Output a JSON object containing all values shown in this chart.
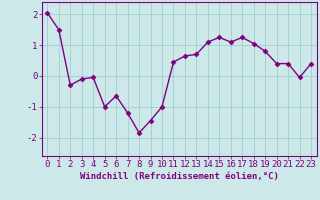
{
  "x": [
    0,
    1,
    2,
    3,
    4,
    5,
    6,
    7,
    8,
    9,
    10,
    11,
    12,
    13,
    14,
    15,
    16,
    17,
    18,
    19,
    20,
    21,
    22,
    23
  ],
  "y": [
    2.05,
    1.5,
    -0.3,
    -0.1,
    -0.05,
    -1.0,
    -0.65,
    -1.2,
    -1.85,
    -1.45,
    -1.0,
    0.45,
    0.65,
    0.7,
    1.1,
    1.25,
    1.1,
    1.25,
    1.05,
    0.8,
    0.4,
    0.4,
    -0.05,
    0.4
  ],
  "line_color": "#800080",
  "marker": "D",
  "markersize": 2.5,
  "linewidth": 1.0,
  "xlabel": "Windchill (Refroidissement éolien,°C)",
  "ylim": [
    -2.6,
    2.4
  ],
  "xlim": [
    -0.5,
    23.5
  ],
  "yticks": [
    -2,
    -1,
    0,
    1,
    2
  ],
  "xticks": [
    0,
    1,
    2,
    3,
    4,
    5,
    6,
    7,
    8,
    9,
    10,
    11,
    12,
    13,
    14,
    15,
    16,
    17,
    18,
    19,
    20,
    21,
    22,
    23
  ],
  "grid_color": "#9ecece",
  "bg_color": "#cce8e8",
  "spine_color": "#800080",
  "tick_color": "#800080",
  "label_color": "#800080",
  "xlabel_fontsize": 6.5,
  "tick_fontsize": 6.5
}
